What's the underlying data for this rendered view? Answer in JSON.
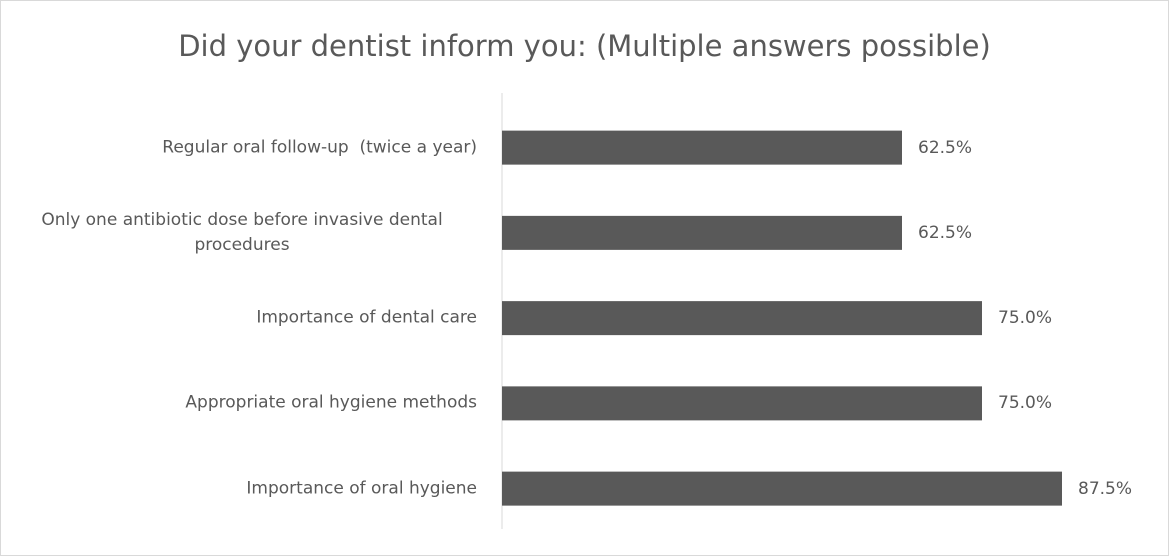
{
  "chart_data": {
    "type": "bar",
    "orientation": "horizontal",
    "title": "Did your dentist inform you: (Multiple answers possible)",
    "categories": [
      "Regular oral follow-up  (twice a year)",
      "Only one antibiotic dose before invasive dental procedures",
      "Importance of dental care",
      "Appropriate oral hygiene methods",
      "Importance of oral hygiene"
    ],
    "values": [
      62.5,
      62.5,
      75,
      75,
      87.5
    ],
    "value_labels": [
      "62.5%",
      "62.5%",
      "75.0%",
      "75.0%",
      "87.5%"
    ],
    "color": "#595959"
  }
}
